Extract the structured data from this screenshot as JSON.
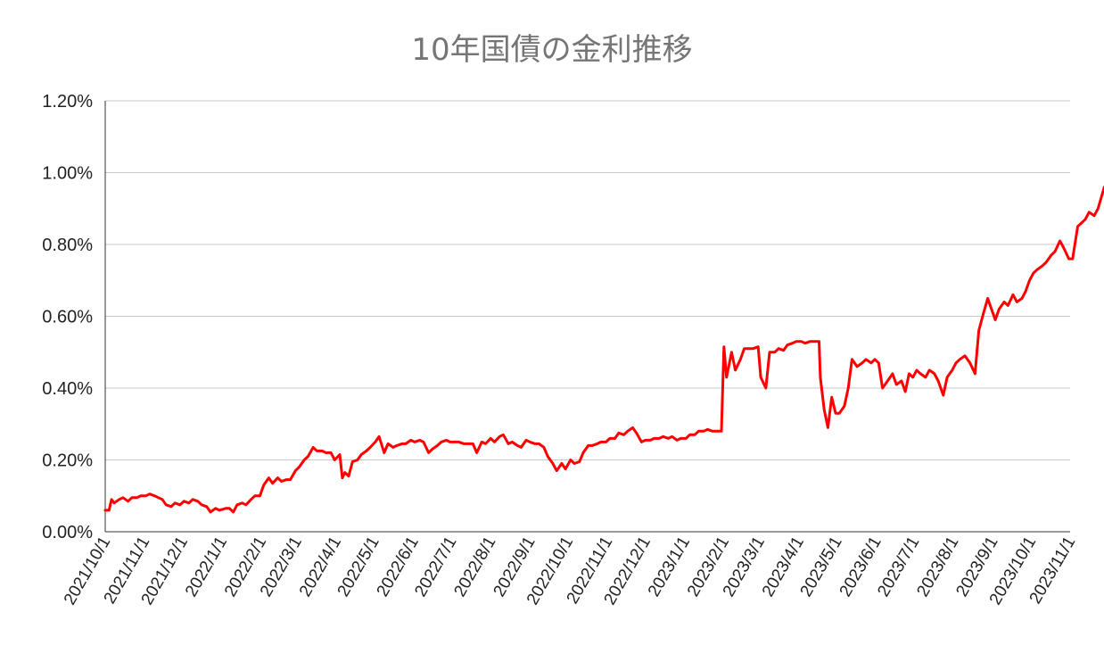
{
  "chart_data": {
    "type": "line",
    "title": "10年国債の金利推移",
    "xlabel": "",
    "ylabel": "",
    "x_ticks": [
      "2021/10/1",
      "2021/11/1",
      "2021/12/1",
      "2022/1/1",
      "2022/2/1",
      "2022/3/1",
      "2022/4/1",
      "2022/5/1",
      "2022/6/1",
      "2022/7/1",
      "2022/8/1",
      "2022/9/1",
      "2022/10/1",
      "2022/11/1",
      "2022/12/1",
      "2023/1/1",
      "2023/2/1",
      "2023/3/1",
      "2023/4/1",
      "2023/5/1",
      "2023/6/1",
      "2023/7/1",
      "2023/8/1",
      "2023/9/1",
      "2023/10/1",
      "2023/11/1"
    ],
    "y_ticks": [
      "0.00%",
      "0.20%",
      "0.40%",
      "0.60%",
      "0.80%",
      "1.00%",
      "1.20%"
    ],
    "ylim": [
      0,
      1.2
    ],
    "grid": true,
    "legend": "none",
    "series": [
      {
        "color": "#ff0000",
        "points": [
          [
            "2021-10-01",
            0.06
          ],
          [
            "2021-10-04",
            0.06
          ],
          [
            "2021-10-06",
            0.09
          ],
          [
            "2021-10-08",
            0.08
          ],
          [
            "2021-10-12",
            0.09
          ],
          [
            "2021-10-15",
            0.095
          ],
          [
            "2021-10-19",
            0.085
          ],
          [
            "2021-10-22",
            0.095
          ],
          [
            "2021-10-26",
            0.095
          ],
          [
            "2021-10-29",
            0.1
          ],
          [
            "2021-11-02",
            0.1
          ],
          [
            "2021-11-05",
            0.105
          ],
          [
            "2021-11-09",
            0.1
          ],
          [
            "2021-11-12",
            0.095
          ],
          [
            "2021-11-15",
            0.09
          ],
          [
            "2021-11-18",
            0.075
          ],
          [
            "2021-11-22",
            0.07
          ],
          [
            "2021-11-25",
            0.08
          ],
          [
            "2021-11-29",
            0.075
          ],
          [
            "2021-12-02",
            0.085
          ],
          [
            "2021-12-06",
            0.08
          ],
          [
            "2021-12-09",
            0.09
          ],
          [
            "2021-12-13",
            0.085
          ],
          [
            "2021-12-16",
            0.075
          ],
          [
            "2021-12-20",
            0.07
          ],
          [
            "2021-12-23",
            0.055
          ],
          [
            "2021-12-27",
            0.065
          ],
          [
            "2021-12-30",
            0.06
          ],
          [
            "2022-01-04",
            0.065
          ],
          [
            "2022-01-07",
            0.065
          ],
          [
            "2022-01-10",
            0.055
          ],
          [
            "2022-01-13",
            0.075
          ],
          [
            "2022-01-17",
            0.08
          ],
          [
            "2022-01-20",
            0.075
          ],
          [
            "2022-01-24",
            0.09
          ],
          [
            "2022-01-27",
            0.1
          ],
          [
            "2022-01-31",
            0.1
          ],
          [
            "2022-02-03",
            0.13
          ],
          [
            "2022-02-07",
            0.15
          ],
          [
            "2022-02-10",
            0.135
          ],
          [
            "2022-02-14",
            0.15
          ],
          [
            "2022-02-17",
            0.14
          ],
          [
            "2022-02-21",
            0.145
          ],
          [
            "2022-02-24",
            0.145
          ],
          [
            "2022-02-28",
            0.17
          ],
          [
            "2022-03-03",
            0.18
          ],
          [
            "2022-03-07",
            0.2
          ],
          [
            "2022-03-10",
            0.21
          ],
          [
            "2022-03-14",
            0.235
          ],
          [
            "2022-03-17",
            0.225
          ],
          [
            "2022-03-21",
            0.225
          ],
          [
            "2022-03-24",
            0.22
          ],
          [
            "2022-03-28",
            0.22
          ],
          [
            "2022-03-31",
            0.2
          ],
          [
            "2022-04-04",
            0.215
          ],
          [
            "2022-04-06",
            0.15
          ],
          [
            "2022-04-08",
            0.165
          ],
          [
            "2022-04-11",
            0.155
          ],
          [
            "2022-04-14",
            0.195
          ],
          [
            "2022-04-18",
            0.2
          ],
          [
            "2022-04-21",
            0.215
          ],
          [
            "2022-04-25",
            0.225
          ],
          [
            "2022-04-28",
            0.235
          ],
          [
            "2022-05-02",
            0.25
          ],
          [
            "2022-05-05",
            0.265
          ],
          [
            "2022-05-09",
            0.22
          ],
          [
            "2022-05-12",
            0.245
          ],
          [
            "2022-05-16",
            0.235
          ],
          [
            "2022-05-19",
            0.24
          ],
          [
            "2022-05-23",
            0.245
          ],
          [
            "2022-05-26",
            0.245
          ],
          [
            "2022-05-30",
            0.255
          ],
          [
            "2022-06-02",
            0.25
          ],
          [
            "2022-06-06",
            0.255
          ],
          [
            "2022-06-09",
            0.25
          ],
          [
            "2022-06-13",
            0.22
          ],
          [
            "2022-06-16",
            0.23
          ],
          [
            "2022-06-20",
            0.24
          ],
          [
            "2022-06-23",
            0.25
          ],
          [
            "2022-06-27",
            0.255
          ],
          [
            "2022-06-30",
            0.25
          ],
          [
            "2022-07-04",
            0.25
          ],
          [
            "2022-07-07",
            0.25
          ],
          [
            "2022-07-11",
            0.245
          ],
          [
            "2022-07-14",
            0.245
          ],
          [
            "2022-07-18",
            0.245
          ],
          [
            "2022-07-21",
            0.22
          ],
          [
            "2022-07-25",
            0.25
          ],
          [
            "2022-07-28",
            0.245
          ],
          [
            "2022-08-01",
            0.26
          ],
          [
            "2022-08-04",
            0.25
          ],
          [
            "2022-08-08",
            0.265
          ],
          [
            "2022-08-11",
            0.27
          ],
          [
            "2022-08-15",
            0.245
          ],
          [
            "2022-08-18",
            0.25
          ],
          [
            "2022-08-22",
            0.24
          ],
          [
            "2022-08-25",
            0.235
          ],
          [
            "2022-08-29",
            0.255
          ],
          [
            "2022-09-01",
            0.25
          ],
          [
            "2022-09-05",
            0.245
          ],
          [
            "2022-09-08",
            0.245
          ],
          [
            "2022-09-12",
            0.235
          ],
          [
            "2022-09-15",
            0.21
          ],
          [
            "2022-09-19",
            0.19
          ],
          [
            "2022-09-22",
            0.17
          ],
          [
            "2022-09-26",
            0.19
          ],
          [
            "2022-09-29",
            0.175
          ],
          [
            "2022-10-03",
            0.2
          ],
          [
            "2022-10-06",
            0.19
          ],
          [
            "2022-10-10",
            0.195
          ],
          [
            "2022-10-13",
            0.22
          ],
          [
            "2022-10-17",
            0.24
          ],
          [
            "2022-10-20",
            0.24
          ],
          [
            "2022-10-24",
            0.245
          ],
          [
            "2022-10-27",
            0.25
          ],
          [
            "2022-10-31",
            0.25
          ],
          [
            "2022-11-03",
            0.26
          ],
          [
            "2022-11-07",
            0.26
          ],
          [
            "2022-11-10",
            0.275
          ],
          [
            "2022-11-14",
            0.27
          ],
          [
            "2022-11-17",
            0.28
          ],
          [
            "2022-11-21",
            0.29
          ],
          [
            "2022-11-24",
            0.275
          ],
          [
            "2022-11-28",
            0.25
          ],
          [
            "2022-12-01",
            0.255
          ],
          [
            "2022-12-05",
            0.255
          ],
          [
            "2022-12-08",
            0.26
          ],
          [
            "2022-12-12",
            0.26
          ],
          [
            "2022-12-15",
            0.265
          ],
          [
            "2022-12-19",
            0.26
          ],
          [
            "2022-12-22",
            0.265
          ],
          [
            "2022-12-26",
            0.255
          ],
          [
            "2022-12-29",
            0.26
          ],
          [
            "2023-01-02",
            0.26
          ],
          [
            "2023-01-05",
            0.27
          ],
          [
            "2023-01-09",
            0.27
          ],
          [
            "2023-01-12",
            0.28
          ],
          [
            "2023-01-16",
            0.28
          ],
          [
            "2023-01-19",
            0.285
          ],
          [
            "2023-01-23",
            0.28
          ],
          [
            "2023-01-26",
            0.28
          ],
          [
            "2023-01-30",
            0.28
          ],
          [
            "2023-02-01",
            0.515
          ],
          [
            "2023-02-03",
            0.43
          ],
          [
            "2023-02-07",
            0.5
          ],
          [
            "2023-02-10",
            0.45
          ],
          [
            "2023-02-14",
            0.48
          ],
          [
            "2023-02-17",
            0.51
          ],
          [
            "2023-02-21",
            0.51
          ],
          [
            "2023-02-24",
            0.51
          ],
          [
            "2023-02-28",
            0.515
          ],
          [
            "2023-03-02",
            0.43
          ],
          [
            "2023-03-06",
            0.4
          ],
          [
            "2023-03-09",
            0.5
          ],
          [
            "2023-03-13",
            0.5
          ],
          [
            "2023-03-16",
            0.51
          ],
          [
            "2023-03-20",
            0.505
          ],
          [
            "2023-03-23",
            0.52
          ],
          [
            "2023-03-27",
            0.525
          ],
          [
            "2023-03-30",
            0.53
          ],
          [
            "2023-04-03",
            0.53
          ],
          [
            "2023-04-06",
            0.525
          ],
          [
            "2023-04-10",
            0.53
          ],
          [
            "2023-04-13",
            0.53
          ],
          [
            "2023-04-17",
            0.53
          ],
          [
            "2023-04-18",
            0.43
          ],
          [
            "2023-04-21",
            0.34
          ],
          [
            "2023-04-24",
            0.29
          ],
          [
            "2023-04-27",
            0.375
          ],
          [
            "2023-04-30",
            0.33
          ],
          [
            "2023-05-03",
            0.33
          ],
          [
            "2023-05-07",
            0.35
          ],
          [
            "2023-05-10",
            0.4
          ],
          [
            "2023-05-13",
            0.48
          ],
          [
            "2023-05-17",
            0.46
          ],
          [
            "2023-05-21",
            0.47
          ],
          [
            "2023-05-24",
            0.48
          ],
          [
            "2023-05-28",
            0.47
          ],
          [
            "2023-05-31",
            0.48
          ],
          [
            "2023-06-03",
            0.47
          ],
          [
            "2023-06-06",
            0.4
          ],
          [
            "2023-06-10",
            0.42
          ],
          [
            "2023-06-14",
            0.44
          ],
          [
            "2023-06-17",
            0.41
          ],
          [
            "2023-06-21",
            0.42
          ],
          [
            "2023-06-24",
            0.39
          ],
          [
            "2023-06-27",
            0.44
          ],
          [
            "2023-06-30",
            0.43
          ],
          [
            "2023-07-03",
            0.45
          ],
          [
            "2023-07-06",
            0.44
          ],
          [
            "2023-07-10",
            0.43
          ],
          [
            "2023-07-13",
            0.45
          ],
          [
            "2023-07-17",
            0.44
          ],
          [
            "2023-07-20",
            0.42
          ],
          [
            "2023-07-24",
            0.38
          ],
          [
            "2023-07-27",
            0.43
          ],
          [
            "2023-07-31",
            0.45
          ],
          [
            "2023-08-03",
            0.47
          ],
          [
            "2023-08-06",
            0.48
          ],
          [
            "2023-08-10",
            0.49
          ],
          [
            "2023-08-14",
            0.47
          ],
          [
            "2023-08-18",
            0.44
          ],
          [
            "2023-08-21",
            0.56
          ],
          [
            "2023-08-24",
            0.6
          ],
          [
            "2023-08-28",
            0.65
          ],
          [
            "2023-08-31",
            0.62
          ],
          [
            "2023-09-03",
            0.59
          ],
          [
            "2023-09-06",
            0.62
          ],
          [
            "2023-09-10",
            0.64
          ],
          [
            "2023-09-13",
            0.63
          ],
          [
            "2023-09-17",
            0.66
          ],
          [
            "2023-09-20",
            0.64
          ],
          [
            "2023-09-24",
            0.65
          ],
          [
            "2023-09-27",
            0.67
          ],
          [
            "2023-09-30",
            0.7
          ],
          [
            "2023-10-03",
            0.72
          ],
          [
            "2023-10-06",
            0.73
          ],
          [
            "2023-10-10",
            0.74
          ],
          [
            "2023-10-13",
            0.75
          ],
          [
            "2023-10-17",
            0.77
          ],
          [
            "2023-10-20",
            0.78
          ],
          [
            "2023-10-24",
            0.81
          ],
          [
            "2023-10-27",
            0.79
          ],
          [
            "2023-10-31",
            0.76
          ],
          [
            "2023-11-03",
            0.76
          ],
          [
            "2023-11-07",
            0.85
          ],
          [
            "2023-11-10",
            0.86
          ],
          [
            "2023-11-13",
            0.87
          ],
          [
            "2023-11-16",
            0.89
          ],
          [
            "2023-11-20",
            0.88
          ],
          [
            "2023-11-23",
            0.9
          ],
          [
            "2023-11-28",
            0.96
          ]
        ]
      }
    ]
  }
}
